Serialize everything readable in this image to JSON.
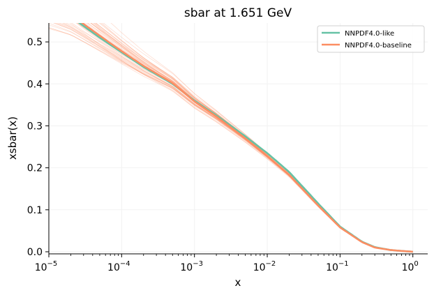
{
  "chart_data": {
    "type": "line",
    "title": "sbar at 1.651 GeV",
    "xlabel": "x",
    "ylabel": "xsbar(x)",
    "xscale": "log",
    "xlim": [
      1e-05,
      1.6
    ],
    "ylim": [
      -0.005,
      0.545
    ],
    "x_ticks": [
      {
        "value": 1e-05,
        "base": "10",
        "exp": "−5"
      },
      {
        "value": 0.0001,
        "base": "10",
        "exp": "−4"
      },
      {
        "value": 0.001,
        "base": "10",
        "exp": "−3"
      },
      {
        "value": 0.01,
        "base": "10",
        "exp": "−2"
      },
      {
        "value": 0.1,
        "base": "10",
        "exp": "−1"
      },
      {
        "value": 1,
        "base": "10",
        "exp": "0"
      }
    ],
    "y_ticks": [
      "0.0",
      "0.1",
      "0.2",
      "0.3",
      "0.4",
      "0.5"
    ],
    "grid": true,
    "legend_position": "top-right",
    "replicas": {
      "count": 40,
      "color": "#fc8d62",
      "note": "thin faint replica curves drawn around the baseline central value"
    },
    "series": [
      {
        "name": "NNPDF4.0-like",
        "color": "#66c2a5",
        "x": [
          1e-05,
          2e-05,
          5e-05,
          0.0001,
          0.0002,
          0.0005,
          0.001,
          0.002,
          0.005,
          0.01,
          0.02,
          0.05,
          0.1,
          0.2,
          0.3,
          0.5,
          0.7,
          1.0
        ],
        "y": [
          0.59,
          0.56,
          0.51,
          0.475,
          0.44,
          0.4,
          0.36,
          0.325,
          0.275,
          0.235,
          0.19,
          0.115,
          0.06,
          0.024,
          0.011,
          0.004,
          0.002,
          0.0
        ]
      },
      {
        "name": "NNPDF4.0-baseline",
        "color": "#fc8d62",
        "x": [
          1e-05,
          2e-05,
          5e-05,
          0.0001,
          0.0002,
          0.0005,
          0.001,
          0.002,
          0.005,
          0.01,
          0.02,
          0.05,
          0.1,
          0.2,
          0.3,
          0.5,
          0.7,
          1.0
        ],
        "y": [
          0.592,
          0.565,
          0.515,
          0.478,
          0.443,
          0.402,
          0.358,
          0.322,
          0.27,
          0.228,
          0.183,
          0.11,
          0.058,
          0.023,
          0.01,
          0.004,
          0.002,
          0.0
        ]
      }
    ]
  }
}
